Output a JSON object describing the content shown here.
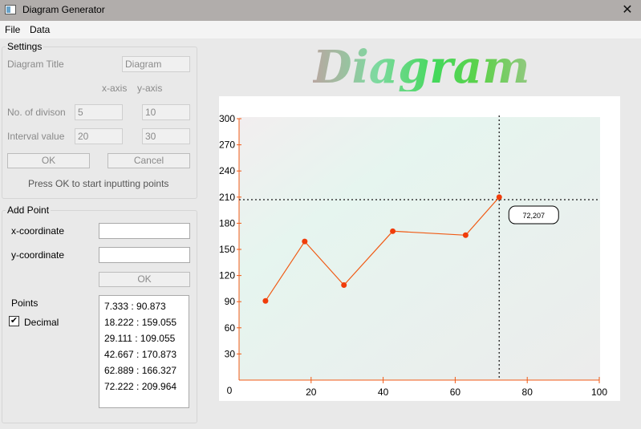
{
  "window": {
    "title": "Diagram Generator",
    "close_glyph": "✕"
  },
  "menu": {
    "items": [
      "File",
      "Data"
    ]
  },
  "settings": {
    "group_title": "Settings",
    "diagram_title_label": "Diagram Title",
    "diagram_title_value": "Diagram",
    "x_axis_header": "x-axis",
    "y_axis_header": "y-axis",
    "divisions_label": "No. of divison",
    "divisions_x": "5",
    "divisions_y": "10",
    "interval_label": "Interval value",
    "interval_x": "20",
    "interval_y": "30",
    "ok_label": "OK",
    "cancel_label": "Cancel",
    "hint": "Press OK to start inputting points"
  },
  "add_point": {
    "group_title": "Add Point",
    "x_label": "x-coordinate",
    "x_value": "",
    "y_label": "y-coordinate",
    "y_value": "",
    "ok_label": "OK",
    "points_label": "Points",
    "decimal_label": "Decimal",
    "decimal_checked": true,
    "points": [
      "7.333 : 90.873",
      "18.222 : 159.055",
      "29.111 : 109.055",
      "42.667 : 170.873",
      "62.889 : 166.327",
      "72.222 : 209.964"
    ]
  },
  "banner": {
    "text": "Diagram"
  },
  "chart_data": {
    "type": "line",
    "x": [
      7.333,
      18.222,
      29.111,
      42.667,
      62.889,
      72.222
    ],
    "y": [
      90.873,
      159.055,
      109.055,
      170.873,
      166.327,
      209.964
    ],
    "xlim": [
      0,
      100
    ],
    "ylim": [
      0,
      300
    ],
    "x_ticks": [
      20,
      40,
      60,
      80,
      100
    ],
    "y_ticks": [
      30,
      60,
      90,
      120,
      150,
      180,
      210,
      240,
      270,
      300
    ],
    "origin_label": "0",
    "crosshair": {
      "x": 72.222,
      "y": 207,
      "label": "72,207"
    },
    "grid": false,
    "colors": {
      "line": "#f05a14",
      "marker": "#f03c0a",
      "axis": "#f05a14",
      "crosshair": "#3a3a3a"
    }
  }
}
